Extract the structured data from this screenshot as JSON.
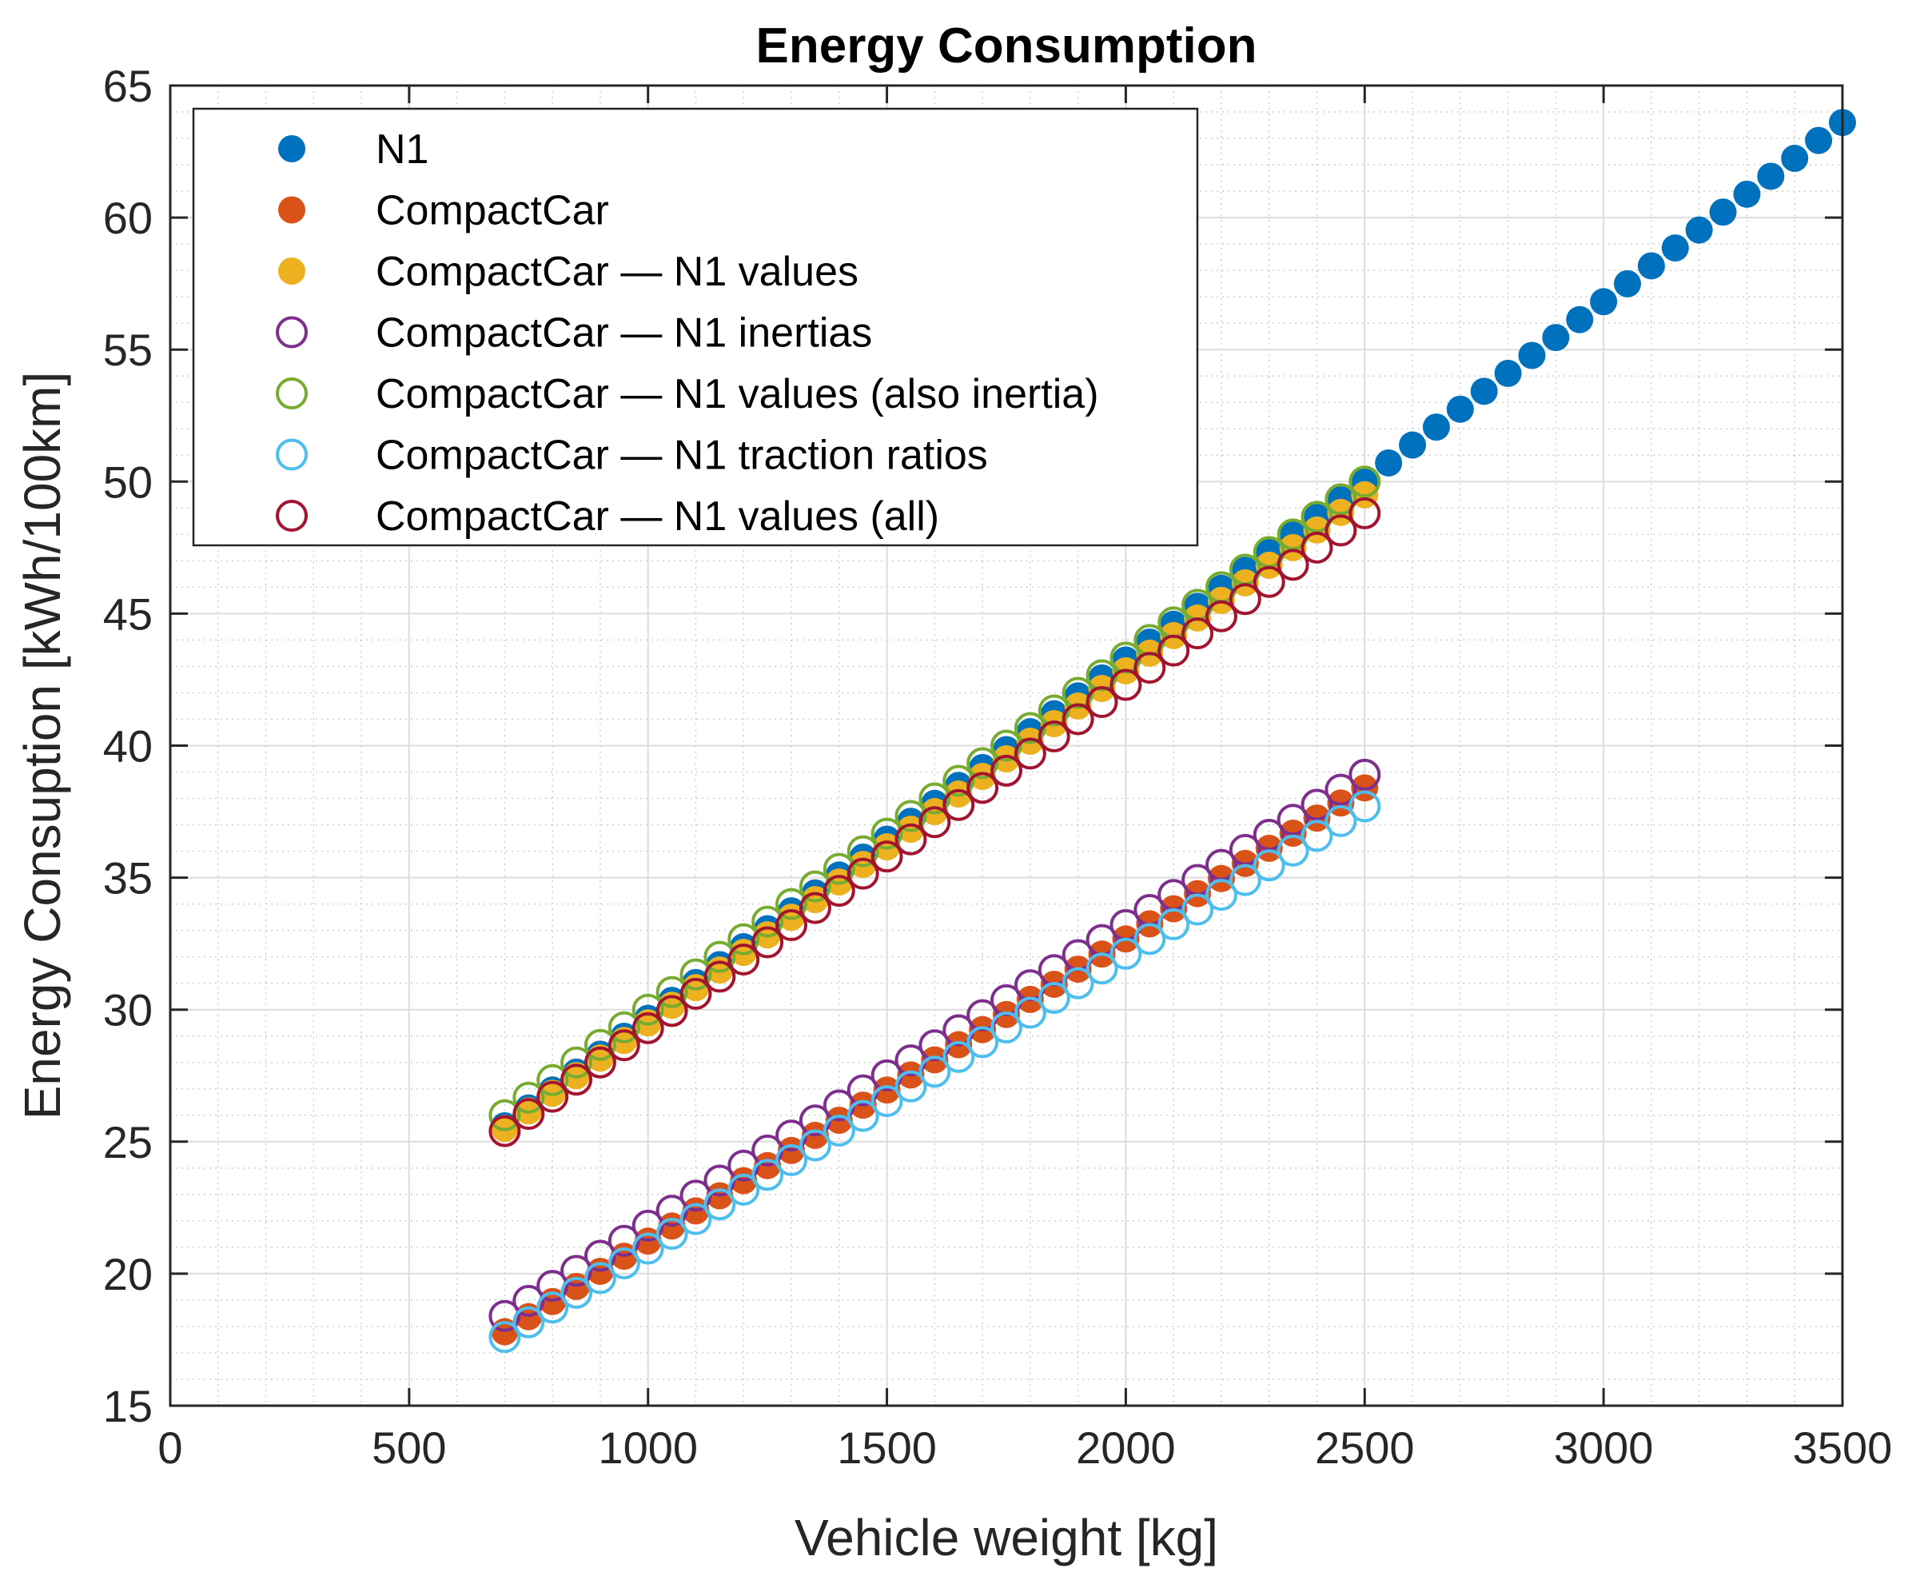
{
  "chart_data": {
    "type": "scatter",
    "title": "Energy Consumption",
    "xlabel": "Vehicle weight [kg]",
    "ylabel": "Energy Consuption [kWh/100km]",
    "xlim": [
      0,
      3500
    ],
    "ylim": [
      15,
      65
    ],
    "xticks": [
      0,
      500,
      1000,
      1500,
      2000,
      2500,
      3000,
      3500
    ],
    "yticks": [
      15,
      20,
      25,
      30,
      35,
      40,
      45,
      50,
      55,
      60,
      65
    ],
    "xtick_labels": [
      "0",
      "500",
      "1000",
      "1500",
      "2000",
      "2500",
      "3000",
      "3500"
    ],
    "ytick_labels": [
      "15",
      "20",
      "25",
      "30",
      "35",
      "40",
      "45",
      "50",
      "55",
      "60",
      "65"
    ],
    "grid": true,
    "minor_grid": true,
    "legend_position": "top-left",
    "series": [
      {
        "name": "N1",
        "marker": "filled",
        "color": "#0072BD",
        "x_start": 700,
        "x_end": 3500,
        "x_step": 50,
        "y_start": 25.6,
        "y_end": 63.6
      },
      {
        "name": "CompactCar",
        "marker": "filled",
        "color": "#D95319",
        "x_start": 700,
        "x_end": 2500,
        "x_step": 50,
        "y_start": 17.8,
        "y_end": 38.4
      },
      {
        "name": "CompactCar — N1 values",
        "marker": "filled",
        "color": "#EDB120",
        "x_start": 700,
        "x_end": 2500,
        "x_step": 50,
        "y_start": 25.5,
        "y_end": 49.5
      },
      {
        "name": "CompactCar — N1 inertias",
        "marker": "open",
        "color": "#7E2F8E",
        "x_start": 700,
        "x_end": 2500,
        "x_step": 50,
        "y_start": 18.4,
        "y_end": 38.9
      },
      {
        "name": "CompactCar — N1 values (also inertia)",
        "marker": "open",
        "color": "#77AC30",
        "x_start": 700,
        "x_end": 2500,
        "x_step": 50,
        "y_start": 26.0,
        "y_end": 50.0
      },
      {
        "name": "CompactCar — N1 traction ratios",
        "marker": "open",
        "color": "#4DBEEE",
        "x_start": 700,
        "x_end": 2500,
        "x_step": 50,
        "y_start": 17.6,
        "y_end": 37.7
      },
      {
        "name": "CompactCar — N1 values (all)",
        "marker": "open",
        "color": "#A2142F",
        "x_start": 700,
        "x_end": 2500,
        "x_step": 50,
        "y_start": 25.4,
        "y_end": 48.8
      }
    ]
  }
}
